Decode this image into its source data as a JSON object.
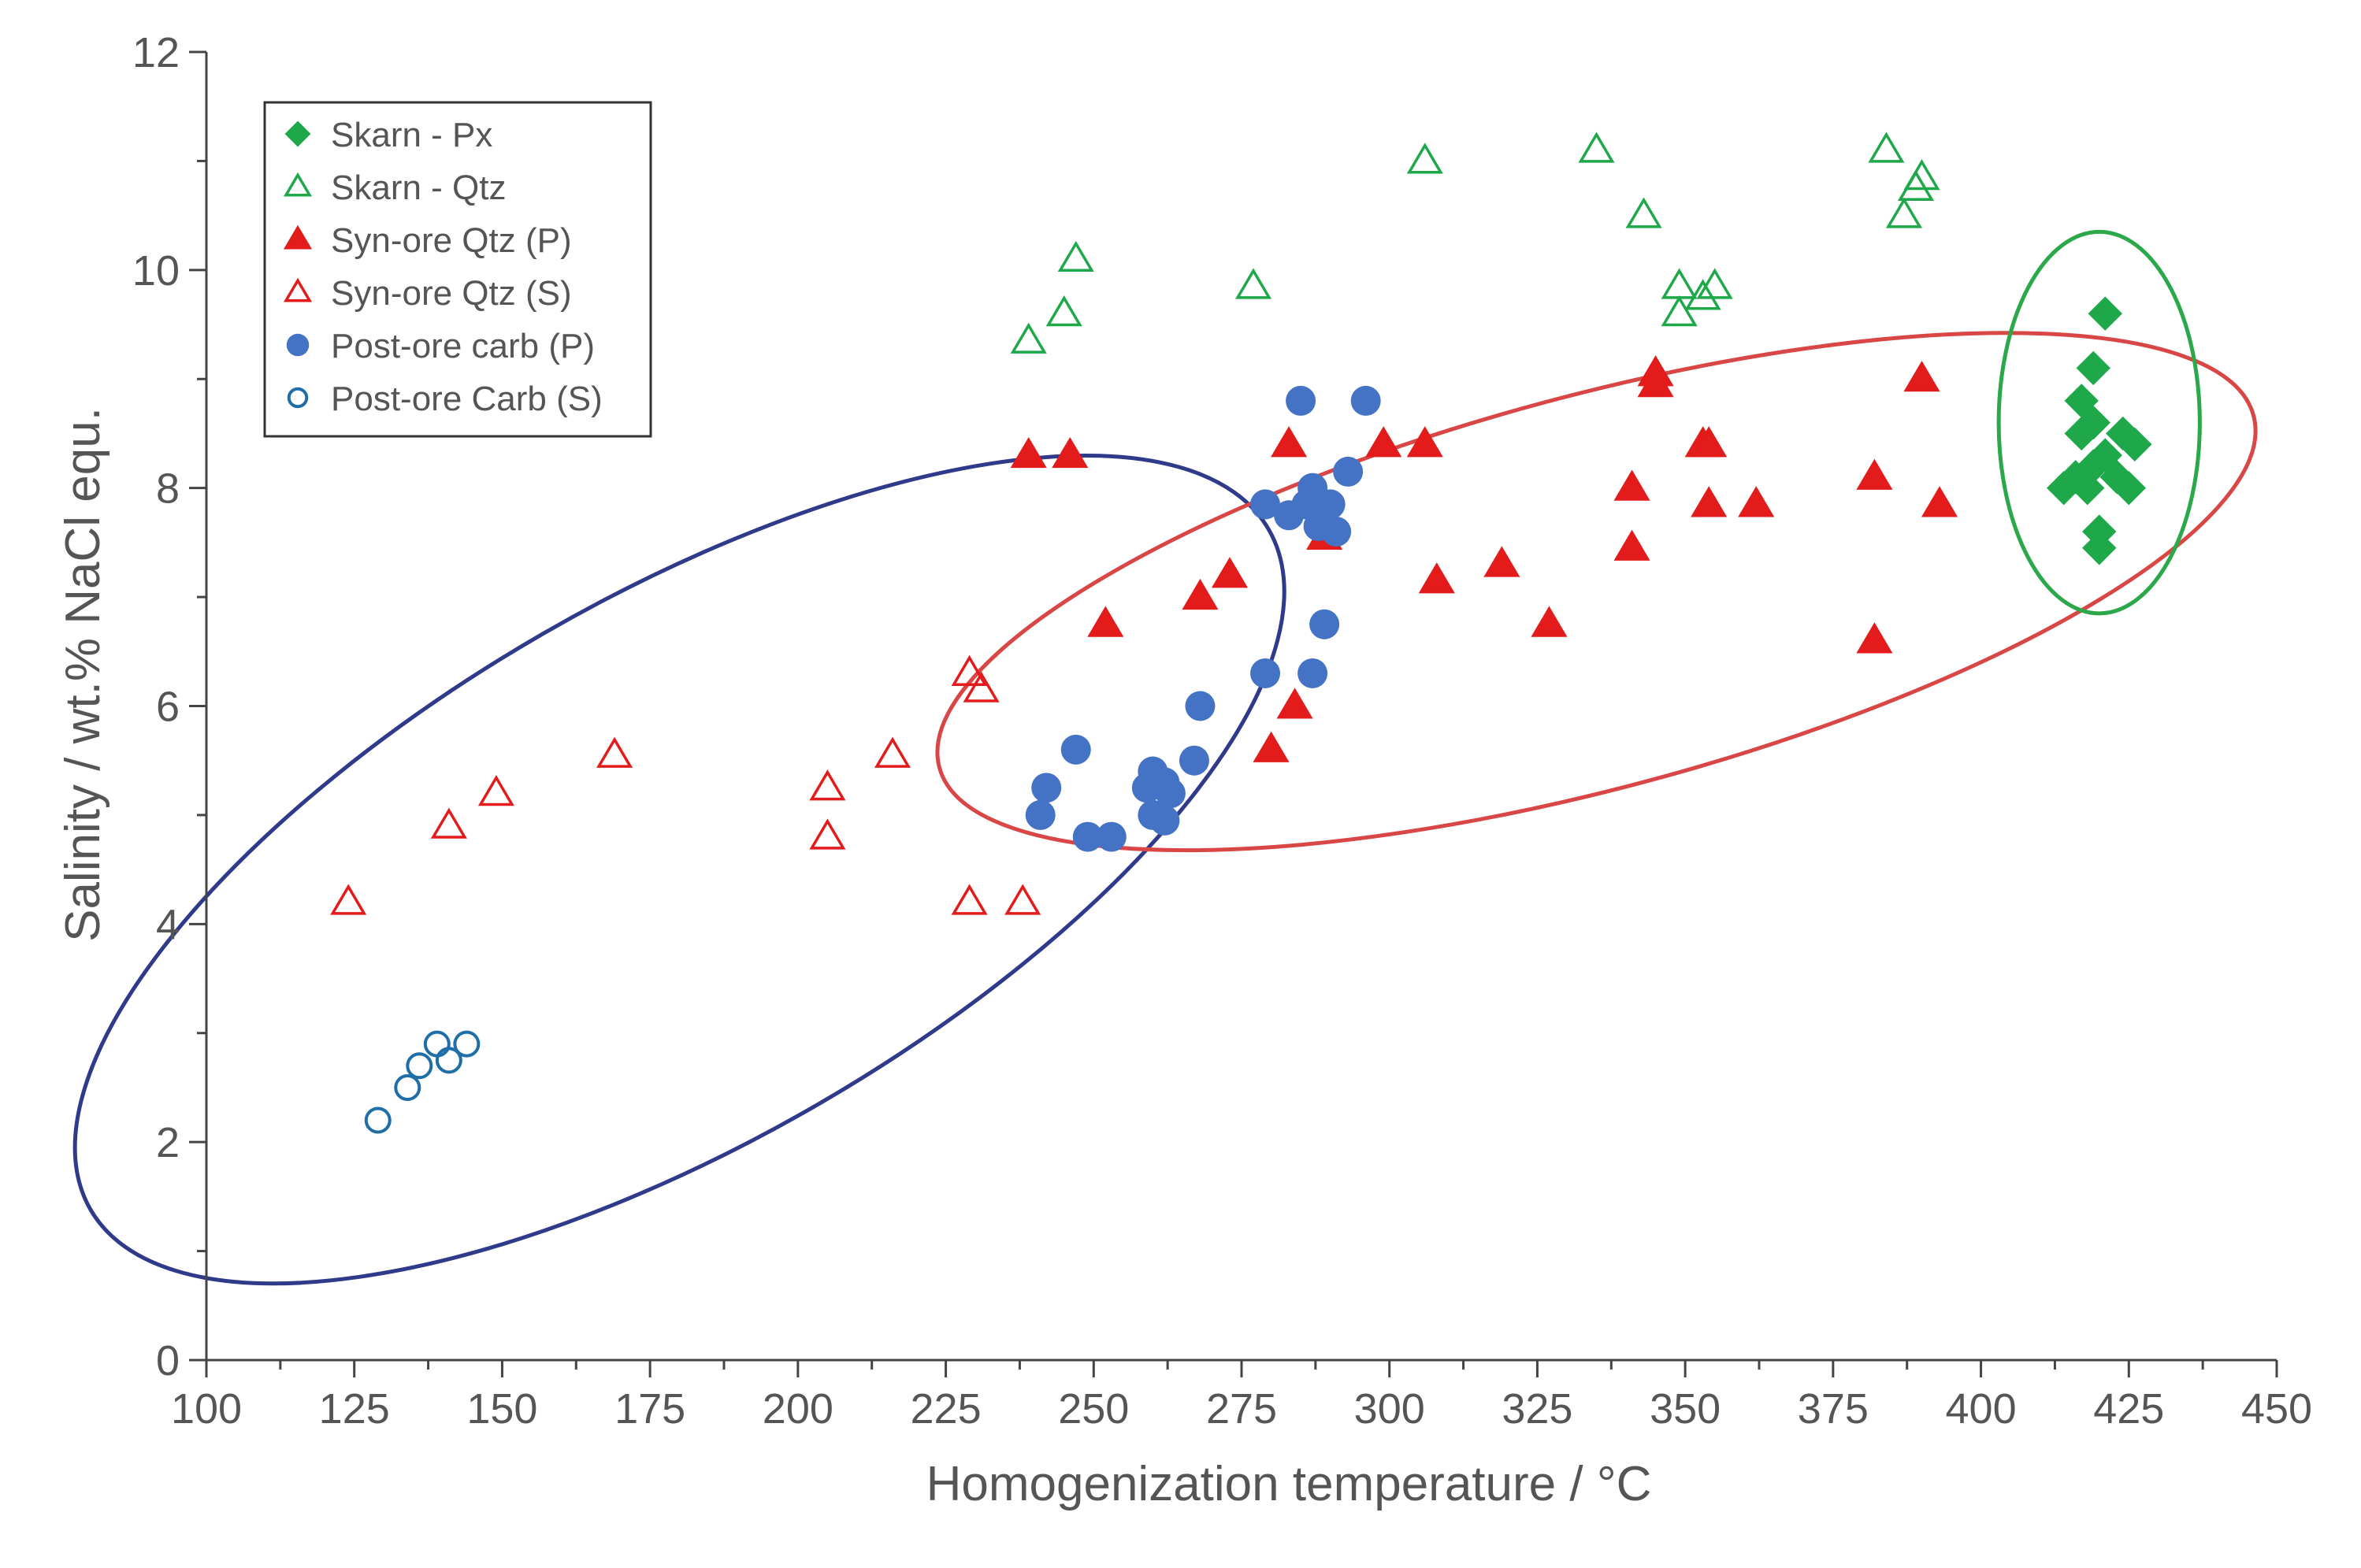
{
  "chart_data": {
    "type": "scatter",
    "title": "",
    "xlabel": "Homogenization temperature / °C",
    "ylabel": "Salinity / wt.% NaCl equ.",
    "xlim": [
      100,
      450
    ],
    "ylim": [
      0,
      12
    ],
    "xticks": [
      100,
      125,
      150,
      175,
      200,
      225,
      250,
      275,
      300,
      325,
      350,
      375,
      400,
      425,
      450
    ],
    "yticks": [
      0,
      2,
      4,
      6,
      8,
      10,
      12
    ],
    "grid": false,
    "legend_position": "top-left",
    "series": [
      {
        "name": "Skarn - Px",
        "marker": "diamond-filled",
        "color": "#1ea84a",
        "points": [
          [
            421,
            9.6
          ],
          [
            419,
            9.1
          ],
          [
            417,
            8.8
          ],
          [
            419,
            8.6
          ],
          [
            417,
            8.5
          ],
          [
            424,
            8.5
          ],
          [
            426,
            8.4
          ],
          [
            421,
            8.3
          ],
          [
            419,
            8.2
          ],
          [
            416,
            8.1
          ],
          [
            423,
            8.1
          ],
          [
            414,
            8.0
          ],
          [
            418,
            8.0
          ],
          [
            425,
            8.0
          ],
          [
            420,
            7.6
          ],
          [
            420,
            7.45
          ]
        ]
      },
      {
        "name": "Skarn - Qtz",
        "marker": "triangle-open",
        "color": "#1ea84a",
        "points": [
          [
            239,
            9.35
          ],
          [
            245,
            9.6
          ],
          [
            247,
            10.1
          ],
          [
            277,
            9.85
          ],
          [
            306,
            11.0
          ],
          [
            335,
            11.1
          ],
          [
            343,
            10.5
          ],
          [
            349,
            9.85
          ],
          [
            349,
            9.6
          ],
          [
            353,
            9.75
          ],
          [
            355,
            9.85
          ],
          [
            384,
            11.1
          ],
          [
            387,
            10.5
          ],
          [
            389,
            10.75
          ],
          [
            390,
            10.85
          ]
        ]
      },
      {
        "name": "Syn-ore Qtz (P)",
        "marker": "triangle-filled",
        "color": "#e31b1b",
        "points": [
          [
            239,
            8.3
          ],
          [
            246,
            8.3
          ],
          [
            252,
            6.75
          ],
          [
            268,
            7.0
          ],
          [
            273,
            7.2
          ],
          [
            280,
            5.6
          ],
          [
            283,
            8.4
          ],
          [
            284,
            6.0
          ],
          [
            289,
            7.55
          ],
          [
            299,
            8.4
          ],
          [
            306,
            8.4
          ],
          [
            308,
            7.15
          ],
          [
            319,
            7.3
          ],
          [
            327,
            6.75
          ],
          [
            341,
            8.0
          ],
          [
            341,
            7.45
          ],
          [
            345,
            9.05
          ],
          [
            345,
            8.95
          ],
          [
            353,
            8.4
          ],
          [
            354,
            8.4
          ],
          [
            354,
            7.85
          ],
          [
            362,
            7.85
          ],
          [
            382,
            8.1
          ],
          [
            382,
            6.6
          ],
          [
            390,
            9.0
          ],
          [
            393,
            7.85
          ]
        ]
      },
      {
        "name": "Syn-ore Qtz (S)",
        "marker": "triangle-open",
        "color": "#e31b1b",
        "points": [
          [
            124,
            4.2
          ],
          [
            141,
            4.9
          ],
          [
            149,
            5.2
          ],
          [
            169,
            5.55
          ],
          [
            205,
            5.25
          ],
          [
            205,
            4.8
          ],
          [
            216,
            5.55
          ],
          [
            229,
            6.3
          ],
          [
            231,
            6.15
          ],
          [
            229,
            4.2
          ],
          [
            238,
            4.2
          ]
        ]
      },
      {
        "name": "Post-ore carb (P)",
        "marker": "circle-filled",
        "color": "#4472c4",
        "points": [
          [
            241,
            5.0
          ],
          [
            242,
            5.25
          ],
          [
            247,
            5.6
          ],
          [
            249,
            4.8
          ],
          [
            253,
            4.8
          ],
          [
            259,
            5.25
          ],
          [
            260,
            5.4
          ],
          [
            260,
            5.0
          ],
          [
            262,
            5.3
          ],
          [
            262,
            4.95
          ],
          [
            263,
            5.2
          ],
          [
            267,
            5.5
          ],
          [
            268,
            6.0
          ],
          [
            279,
            7.85
          ],
          [
            279,
            6.3
          ],
          [
            283,
            7.75
          ],
          [
            285,
            8.8
          ],
          [
            286,
            7.85
          ],
          [
            287,
            8.0
          ],
          [
            287,
            6.3
          ],
          [
            288,
            7.65
          ],
          [
            289,
            6.75
          ],
          [
            290,
            7.85
          ],
          [
            291,
            7.6
          ],
          [
            293,
            8.15
          ],
          [
            296,
            8.8
          ]
        ]
      },
      {
        "name": "Post-ore Carb (S)",
        "marker": "circle-open",
        "color": "#1f6ea8",
        "points": [
          [
            129,
            2.2
          ],
          [
            134,
            2.5
          ],
          [
            136,
            2.7
          ],
          [
            139,
            2.9
          ],
          [
            141,
            2.75
          ],
          [
            144,
            2.9
          ]
        ]
      }
    ],
    "ellipses": [
      {
        "name": "blue-group",
        "color": "#2f3a8a",
        "center": [
          180,
          4.5
        ],
        "semi_major_c": 115,
        "semi_minor_pct": 2.5,
        "rotation": 30
      },
      {
        "name": "red-group",
        "color": "#d94646",
        "center": [
          335,
          7.05
        ],
        "semi_major_c": 115,
        "semi_minor_pct": 1.8,
        "rotation": 15
      },
      {
        "name": "green-group",
        "color": "#2aa84a",
        "center": [
          420,
          8.6
        ],
        "semi_major_c": 17,
        "semi_minor_pct": 1.75,
        "rotation": 0
      }
    ]
  }
}
